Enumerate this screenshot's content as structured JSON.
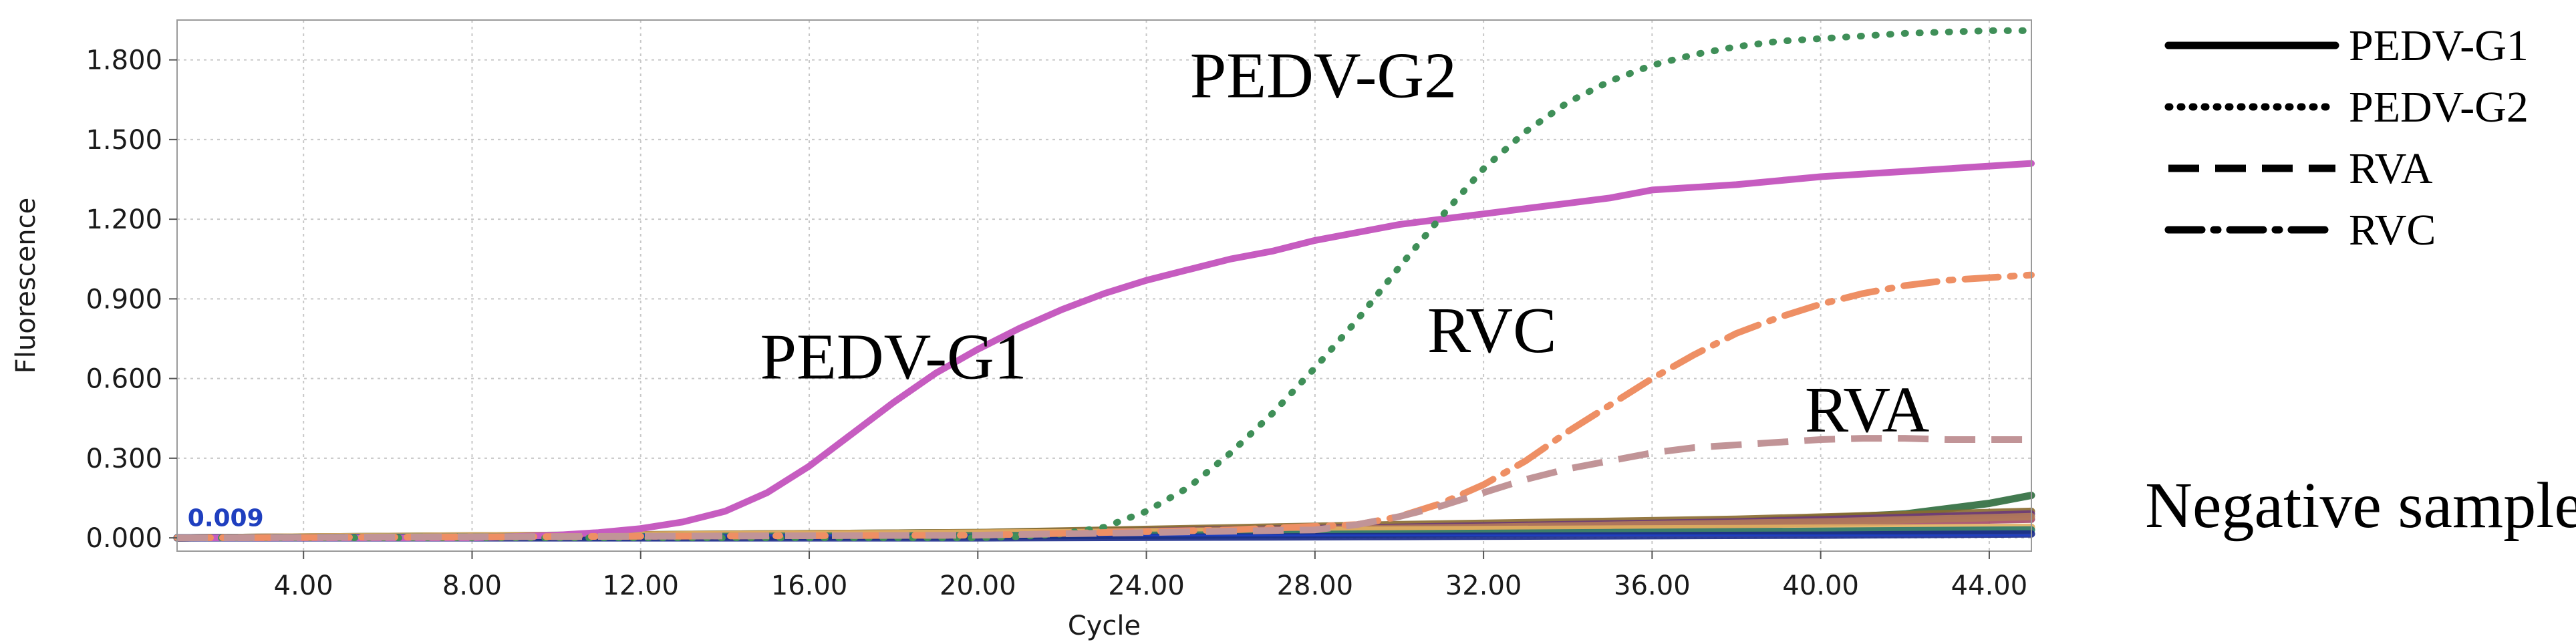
{
  "chart_data": {
    "type": "line",
    "title": "",
    "xlabel": "Cycle",
    "ylabel": "Fluorescence",
    "xlim": [
      1,
      45
    ],
    "ylim": [
      -0.05,
      1.95
    ],
    "xticks": [
      4,
      8,
      12,
      16,
      20,
      24,
      28,
      32,
      36,
      40,
      44
    ],
    "xtick_labels": [
      "4.00",
      "8.00",
      "12.00",
      "16.00",
      "20.00",
      "24.00",
      "28.00",
      "32.00",
      "36.00",
      "40.00",
      "44.00"
    ],
    "yticks": [
      0,
      0.3,
      0.6,
      0.9,
      1.2,
      1.5,
      1.8
    ],
    "ytick_labels": [
      "0.000",
      "0.300",
      "0.600",
      "0.900",
      "1.200",
      "1.500",
      "1.800"
    ],
    "grid": true,
    "threshold": {
      "value": 0.009,
      "label": "0.009",
      "color": "#1f3fbf"
    },
    "series": [
      {
        "name": "PEDV-G1",
        "style": "solid",
        "color": "#c65cc0",
        "x": [
          1,
          4,
          8,
          10,
          11,
          12,
          13,
          14,
          15,
          16,
          17,
          18,
          19,
          20,
          21,
          22,
          23,
          24,
          25,
          26,
          27,
          28,
          29,
          30,
          31,
          32,
          33,
          34,
          35,
          36,
          38,
          40,
          42,
          44,
          45
        ],
        "y": [
          0.0,
          0.0,
          0.0,
          0.01,
          0.02,
          0.035,
          0.06,
          0.1,
          0.17,
          0.27,
          0.39,
          0.51,
          0.62,
          0.71,
          0.79,
          0.86,
          0.92,
          0.97,
          1.01,
          1.05,
          1.08,
          1.12,
          1.15,
          1.18,
          1.2,
          1.22,
          1.24,
          1.26,
          1.28,
          1.31,
          1.33,
          1.36,
          1.38,
          1.4,
          1.41
        ]
      },
      {
        "name": "PEDV-G2",
        "style": "dotted",
        "color": "#3f8f58",
        "x": [
          1,
          8,
          16,
          20,
          21,
          22,
          23,
          24,
          25,
          26,
          27,
          28,
          29,
          30,
          31,
          32,
          33,
          34,
          35,
          36,
          37,
          38,
          39,
          40,
          42,
          44,
          45
        ],
        "y": [
          0.0,
          0.0,
          0.0,
          0.0,
          0.005,
          0.015,
          0.04,
          0.1,
          0.19,
          0.32,
          0.47,
          0.64,
          0.82,
          1.02,
          1.21,
          1.39,
          1.53,
          1.64,
          1.72,
          1.78,
          1.82,
          1.85,
          1.87,
          1.88,
          1.9,
          1.91,
          1.91
        ]
      },
      {
        "name": "RVC",
        "style": "dashdot",
        "color": "#ee8f64",
        "x": [
          1,
          20,
          26,
          29,
          30,
          31,
          32,
          33,
          34,
          35,
          36,
          37,
          38,
          39,
          40,
          41,
          42,
          43,
          44,
          45
        ],
        "y": [
          0.0,
          0.01,
          0.03,
          0.05,
          0.08,
          0.13,
          0.2,
          0.29,
          0.4,
          0.5,
          0.6,
          0.69,
          0.77,
          0.83,
          0.88,
          0.92,
          0.95,
          0.97,
          0.98,
          0.99
        ]
      },
      {
        "name": "RVA",
        "style": "dashed",
        "color": "#c19497",
        "x": [
          1,
          20,
          28,
          29,
          30,
          31,
          32,
          33,
          34,
          35,
          36,
          37,
          38,
          39,
          40,
          41,
          42,
          43,
          44,
          45
        ],
        "y": [
          0.0,
          0.01,
          0.03,
          0.05,
          0.08,
          0.12,
          0.17,
          0.22,
          0.26,
          0.29,
          0.32,
          0.34,
          0.35,
          0.36,
          0.37,
          0.375,
          0.375,
          0.37,
          0.37,
          0.37
        ]
      }
    ],
    "negative_series": [
      {
        "color": "#2e6b3d",
        "x": [
          1,
          20,
          30,
          38,
          42,
          44,
          45
        ],
        "y": [
          0.0,
          0.02,
          0.04,
          0.06,
          0.09,
          0.13,
          0.16
        ]
      },
      {
        "color": "#8a6a2f",
        "x": [
          1,
          20,
          30,
          38,
          45
        ],
        "y": [
          0.0,
          0.02,
          0.05,
          0.07,
          0.1
        ]
      },
      {
        "color": "#6b3a7a",
        "x": [
          1,
          20,
          30,
          38,
          45
        ],
        "y": [
          0.0,
          0.015,
          0.04,
          0.06,
          0.09
        ]
      },
      {
        "color": "#a34a6a",
        "x": [
          1,
          20,
          30,
          38,
          45
        ],
        "y": [
          0.0,
          0.01,
          0.03,
          0.05,
          0.07
        ]
      },
      {
        "color": "#b07a5a",
        "x": [
          1,
          22,
          32,
          40,
          45
        ],
        "y": [
          0.0,
          0.02,
          0.04,
          0.06,
          0.08
        ]
      },
      {
        "color": "#e0b060",
        "x": [
          1,
          22,
          30,
          38,
          45
        ],
        "y": [
          0.0,
          0.02,
          0.03,
          0.035,
          0.04
        ]
      },
      {
        "color": "#2a7a6a",
        "x": [
          1,
          25,
          35,
          45
        ],
        "y": [
          0.0,
          0.01,
          0.02,
          0.03
        ]
      },
      {
        "color": "#1a2a8a",
        "x": [
          1,
          20,
          30,
          40,
          45
        ],
        "y": [
          0.0,
          0.0,
          0.005,
          0.01,
          0.015
        ]
      }
    ],
    "annotations": [
      {
        "text": "PEDV-G1",
        "x": 18.0,
        "y": 0.6
      },
      {
        "text": "PEDV-G2",
        "x": 28.2,
        "y": 1.66
      },
      {
        "text": "RVC",
        "x": 32.2,
        "y": 0.7
      },
      {
        "text": "RVA",
        "x": 41.1,
        "y": 0.4
      },
      {
        "text": "Negative samples",
        "x": 53.2,
        "y": 0.04
      }
    ],
    "legend": {
      "position": "right",
      "entries": [
        {
          "label": "PEDV-G1",
          "style": "solid"
        },
        {
          "label": "PEDV-G2",
          "style": "dotted"
        },
        {
          "label": "RVA",
          "style": "dashed"
        },
        {
          "label": "RVC",
          "style": "dashdot"
        }
      ]
    }
  }
}
